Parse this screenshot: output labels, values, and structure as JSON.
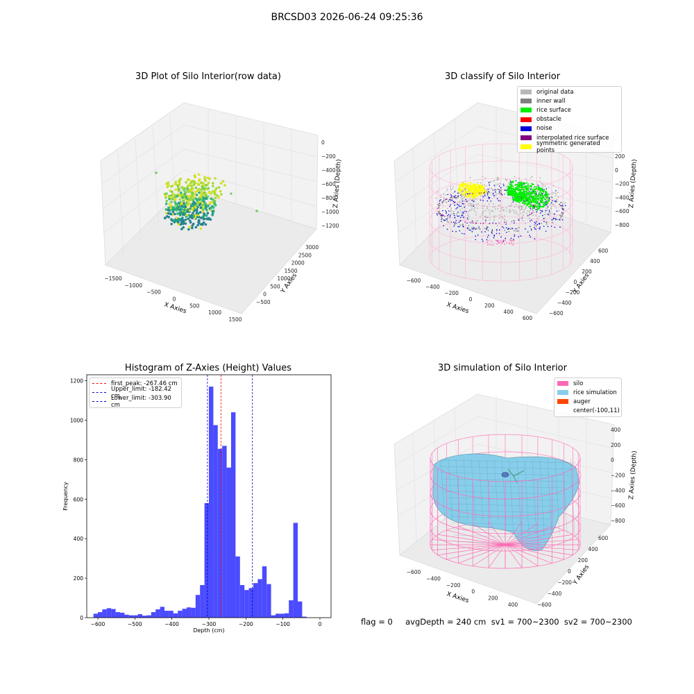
{
  "suptitle": "BRCSD03 2026-06-24 09:25:36",
  "footer": "flag = 0     avgDepth = 240 cm  sv1 = 700~2300  sv2 = 700~2300",
  "panels": {
    "raw": {
      "title": "3D Plot of Silo Interior(row data)",
      "xlabel": "X Axies",
      "ylabel": "Y Axies",
      "zlabel": "Z Axies (Depth)",
      "xticks": [
        "−1500",
        "−1000",
        "−500",
        "0",
        "500",
        "1000",
        "1500"
      ],
      "yticks": [
        "−500",
        "0",
        "500",
        "1000",
        "1500",
        "2000",
        "2500",
        "3000"
      ],
      "zticks": [
        "0",
        "−200",
        "−400",
        "−600",
        "−800",
        "−1000",
        "−1200"
      ]
    },
    "classify": {
      "title": "3D classify of Silo Interior",
      "xlabel": "X Axies",
      "ylabel": "Y Axies",
      "zlabel": "Z Axies (Depth)",
      "xticks": [
        "−600",
        "−400",
        "−200",
        "0",
        "200",
        "400",
        "600"
      ],
      "yticks": [
        "−600",
        "−400",
        "−200",
        "0",
        "200",
        "400",
        "600"
      ],
      "zticks": [
        "200",
        "0",
        "−200",
        "−400",
        "−600",
        "−800"
      ],
      "legend": [
        {
          "label": "original data",
          "color": "#b8b8b8"
        },
        {
          "label": "inner wall",
          "color": "#808080"
        },
        {
          "label": "rice surface",
          "color": "#00ee00"
        },
        {
          "label": "obstacle",
          "color": "#ff0000"
        },
        {
          "label": "noise",
          "color": "#0000dd"
        },
        {
          "label": "interpolated rice surface",
          "color": "#800080"
        },
        {
          "label": "symmetric generated points",
          "color": "#ffff00"
        }
      ]
    },
    "simulation": {
      "title": "3D simulation of Silo Interior",
      "xlabel": "X Axies",
      "ylabel": "Y Axies",
      "zlabel": "Z Axies (Depth)",
      "xticks": [
        "−600",
        "−400",
        "−200",
        "0",
        "200",
        "400"
      ],
      "yticks": [
        "−600",
        "−400",
        "−200",
        "0",
        "200",
        "400",
        "600"
      ],
      "zticks": [
        "400",
        "200",
        "0",
        "−200",
        "−400",
        "−600",
        "−800"
      ],
      "legend": [
        {
          "label": "silo",
          "color": "#ff69b4"
        },
        {
          "label": "rice simulation",
          "color": "#87ceeb"
        },
        {
          "label": "auger",
          "color": "#ff4500"
        },
        {
          "label": "center(-100,11)",
          "color": ""
        }
      ]
    }
  },
  "chart_data": [
    {
      "type": "scatter",
      "title": "3D Plot of Silo Interior(row data)",
      "xlabel": "X Axies",
      "ylabel": "Y Axies",
      "zlabel": "Z Axies (Depth)",
      "xlim": [
        -1500,
        1500
      ],
      "ylim": [
        -500,
        3000
      ],
      "zlim": [
        -1300,
        100
      ]
    },
    {
      "type": "scatter",
      "title": "3D classify of Silo Interior",
      "xlabel": "X Axies",
      "ylabel": "Y Axies",
      "zlabel": "Z Axies (Depth)",
      "xlim": [
        -700,
        600
      ],
      "ylim": [
        -700,
        700
      ],
      "zlim": [
        -900,
        250
      ],
      "legend_placement": "top-right"
    },
    {
      "type": "bar",
      "title": "Histogram of Z-Axies (Height) Values",
      "xlabel": "Depth (cm)",
      "ylabel": "Frequency",
      "xlim": [
        -630,
        30
      ],
      "ylim": [
        0,
        1230
      ],
      "xticks": [
        -600,
        -500,
        -400,
        -300,
        -200,
        -100,
        0
      ],
      "yticks": [
        0,
        200,
        400,
        600,
        800,
        1000,
        1200
      ],
      "bar_color": "#4b4bff",
      "bin_edges": [
        -612,
        -600,
        -588,
        -576,
        -564,
        -552,
        -540,
        -528,
        -516,
        -504,
        -492,
        -480,
        -468,
        -456,
        -444,
        -432,
        -420,
        -408,
        -396,
        -384,
        -372,
        -360,
        -348,
        -336,
        -324,
        -312,
        -300,
        -288,
        -276,
        -264,
        -252,
        -240,
        -228,
        -216,
        -204,
        -192,
        -180,
        -168,
        -156,
        -144,
        -132,
        -120,
        -108,
        -96,
        -84,
        -72,
        -60,
        -48,
        -36,
        -24,
        -12,
        0
      ],
      "values": [
        20,
        28,
        42,
        48,
        44,
        28,
        25,
        15,
        12,
        12,
        18,
        10,
        12,
        28,
        42,
        55,
        35,
        35,
        22,
        35,
        45,
        52,
        50,
        115,
        165,
        580,
        1170,
        975,
        855,
        870,
        760,
        1040,
        310,
        165,
        140,
        150,
        175,
        195,
        260,
        170,
        12,
        20,
        20,
        22,
        88,
        480,
        82,
        5,
        0,
        0,
        0
      ],
      "lines": [
        {
          "label": "first_peak: -267.46 cm",
          "x": -267.46,
          "color": "#ff0000"
        },
        {
          "label": "Upper_limit: -182.42 cm",
          "x": -182.42,
          "color": "#0000cc"
        },
        {
          "label": "Lower_limit: -303.90 cm",
          "x": -303.9,
          "color": "#0000cc"
        }
      ],
      "legend_placement": "top-left"
    },
    {
      "type": "surface",
      "title": "3D simulation of Silo Interior",
      "xlabel": "X Axies",
      "ylabel": "Y Axies",
      "zlabel": "Z Axies (Depth)",
      "xlim": [
        -700,
        500
      ],
      "ylim": [
        -700,
        700
      ],
      "zlim": [
        -900,
        450
      ],
      "center": [
        -100,
        11
      ],
      "legend_placement": "top-right"
    }
  ]
}
